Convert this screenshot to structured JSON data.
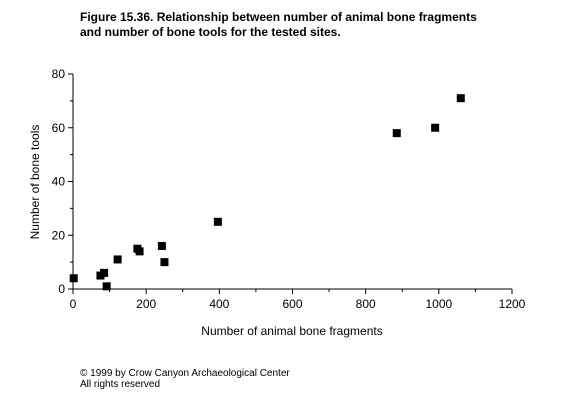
{
  "figure": {
    "title_line1": "Figure 15.36.  Relationship between number of animal bone fragments",
    "title_line2": "and number of bone tools for the tested sites."
  },
  "chart_data": {
    "type": "scatter",
    "title": "Figure 15.36. Relationship between number of animal bone fragments and number of bone tools for the tested sites.",
    "xlabel": "Number of animal bone fragments",
    "ylabel": "Number of bone tools",
    "xlim": [
      0,
      1200
    ],
    "ylim": [
      0,
      80
    ],
    "xticks": [
      0,
      200,
      400,
      600,
      800,
      1000,
      1200
    ],
    "yticks": [
      0,
      20,
      40,
      60,
      80
    ],
    "grid": false,
    "marker": "square",
    "marker_color": "#000000",
    "points": [
      {
        "x": 2,
        "y": 4
      },
      {
        "x": 75,
        "y": 5
      },
      {
        "x": 85,
        "y": 6
      },
      {
        "x": 92,
        "y": 1
      },
      {
        "x": 122,
        "y": 11
      },
      {
        "x": 176,
        "y": 15
      },
      {
        "x": 182,
        "y": 14
      },
      {
        "x": 243,
        "y": 16
      },
      {
        "x": 250,
        "y": 10
      },
      {
        "x": 396,
        "y": 25
      },
      {
        "x": 885,
        "y": 58
      },
      {
        "x": 990,
        "y": 60
      },
      {
        "x": 1060,
        "y": 71
      }
    ]
  },
  "footer": {
    "copyright": "© 1999 by Crow Canyon Archaeological Center",
    "rights": "All rights reserved"
  }
}
